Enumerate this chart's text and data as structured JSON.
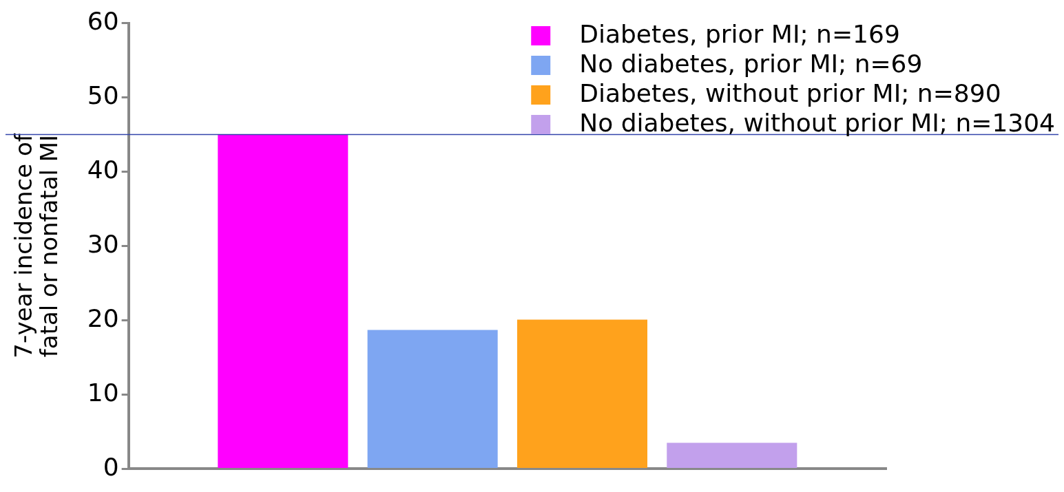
{
  "chart_data": {
    "type": "bar",
    "ylabel": "7-year incidence of fatal or nonfatal MI",
    "categories": [
      null
    ],
    "series": [
      {
        "name": "Diabetes, prior MI; n=169",
        "color": "#ff00ff",
        "values": [
          45
        ]
      },
      {
        "name": "No diabetes, prior MI; n=69",
        "color": "#7ea6f2",
        "values": [
          18.7
        ]
      },
      {
        "name": "Diabetes, without prior MI; n=890",
        "color": "#ffa21c",
        "values": [
          20.1
        ]
      },
      {
        "name": "No diabetes, without prior MI; n=1304",
        "color": "#c2a0ec",
        "values": [
          3.5
        ]
      }
    ],
    "ylim": [
      0,
      60
    ],
    "yticks": [
      0,
      10,
      20,
      30,
      40,
      50,
      60
    ],
    "grid": false,
    "legend": "top right",
    "ref_lines": [
      {
        "axis": "y",
        "value": 45,
        "color": "#3344aa"
      }
    ]
  }
}
